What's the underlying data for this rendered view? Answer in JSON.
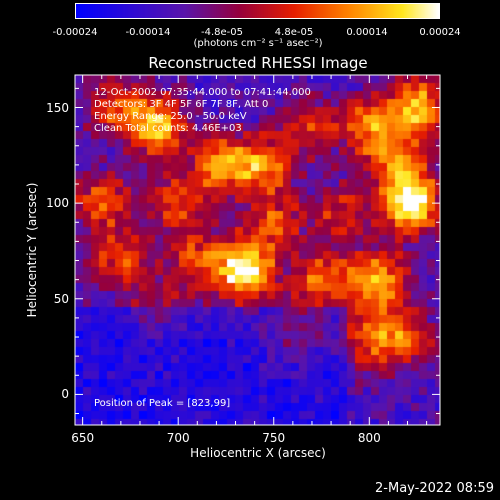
{
  "colorbar": {
    "ticks": [
      "-0.00024",
      "-0.00014",
      "-4.8e-05",
      "4.8e-05",
      "0.00014",
      "0.00024"
    ],
    "units": "(photons cm⁻² s⁻¹ asec⁻²)"
  },
  "chart_data": {
    "type": "heatmap",
    "title": "Reconstructed RHESSI Image",
    "xlabel": "Heliocentric X (arcsec)",
    "ylabel": "Heliocentric Y (arcsec)",
    "xlim": [
      646,
      837
    ],
    "ylim": [
      -16,
      167
    ],
    "xticks": [
      "650",
      "700",
      "750",
      "800"
    ],
    "yticks": [
      "0",
      "50",
      "100",
      "150"
    ],
    "annotations": [
      "12-Oct-2002 07:35:44.000 to 07:41:44.000",
      "Detectors: 3F 4F 5F 6F 7F 8F, Att 0",
      "Energy Range: 25.0 - 50.0 keV",
      "Clean     Total counts: 4.46E+03",
      "Position of Peak = [823,99]"
    ],
    "peak": {
      "x": 823,
      "y": 99
    },
    "blobs": [
      {
        "x": 735,
        "y": 65,
        "v": 1.0
      },
      {
        "x": 822,
        "y": 99,
        "v": 1.0
      },
      {
        "x": 825,
        "y": 150,
        "v": 0.85
      },
      {
        "x": 722,
        "y": 120,
        "v": 0.7
      },
      {
        "x": 745,
        "y": 120,
        "v": 0.7
      },
      {
        "x": 690,
        "y": 140,
        "v": 0.8
      },
      {
        "x": 668,
        "y": 150,
        "v": 0.55
      },
      {
        "x": 660,
        "y": 100,
        "v": 0.6
      },
      {
        "x": 670,
        "y": 70,
        "v": 0.55
      },
      {
        "x": 805,
        "y": 60,
        "v": 0.75
      },
      {
        "x": 775,
        "y": 60,
        "v": 0.6
      },
      {
        "x": 815,
        "y": 120,
        "v": 0.6
      },
      {
        "x": 785,
        "y": 95,
        "v": 0.45
      },
      {
        "x": 700,
        "y": 100,
        "v": 0.5
      },
      {
        "x": 710,
        "y": 70,
        "v": 0.5
      },
      {
        "x": 770,
        "y": 140,
        "v": 0.45
      },
      {
        "x": 800,
        "y": 30,
        "v": 0.55
      },
      {
        "x": 820,
        "y": 30,
        "v": 0.5
      },
      {
        "x": 760,
        "y": 30,
        "v": 0.35
      },
      {
        "x": 690,
        "y": 45,
        "v": 0.3
      },
      {
        "x": 800,
        "y": 140,
        "v": 0.6
      },
      {
        "x": 750,
        "y": 90,
        "v": 0.5
      }
    ]
  },
  "timestamp": "2-May-2022 08:59"
}
